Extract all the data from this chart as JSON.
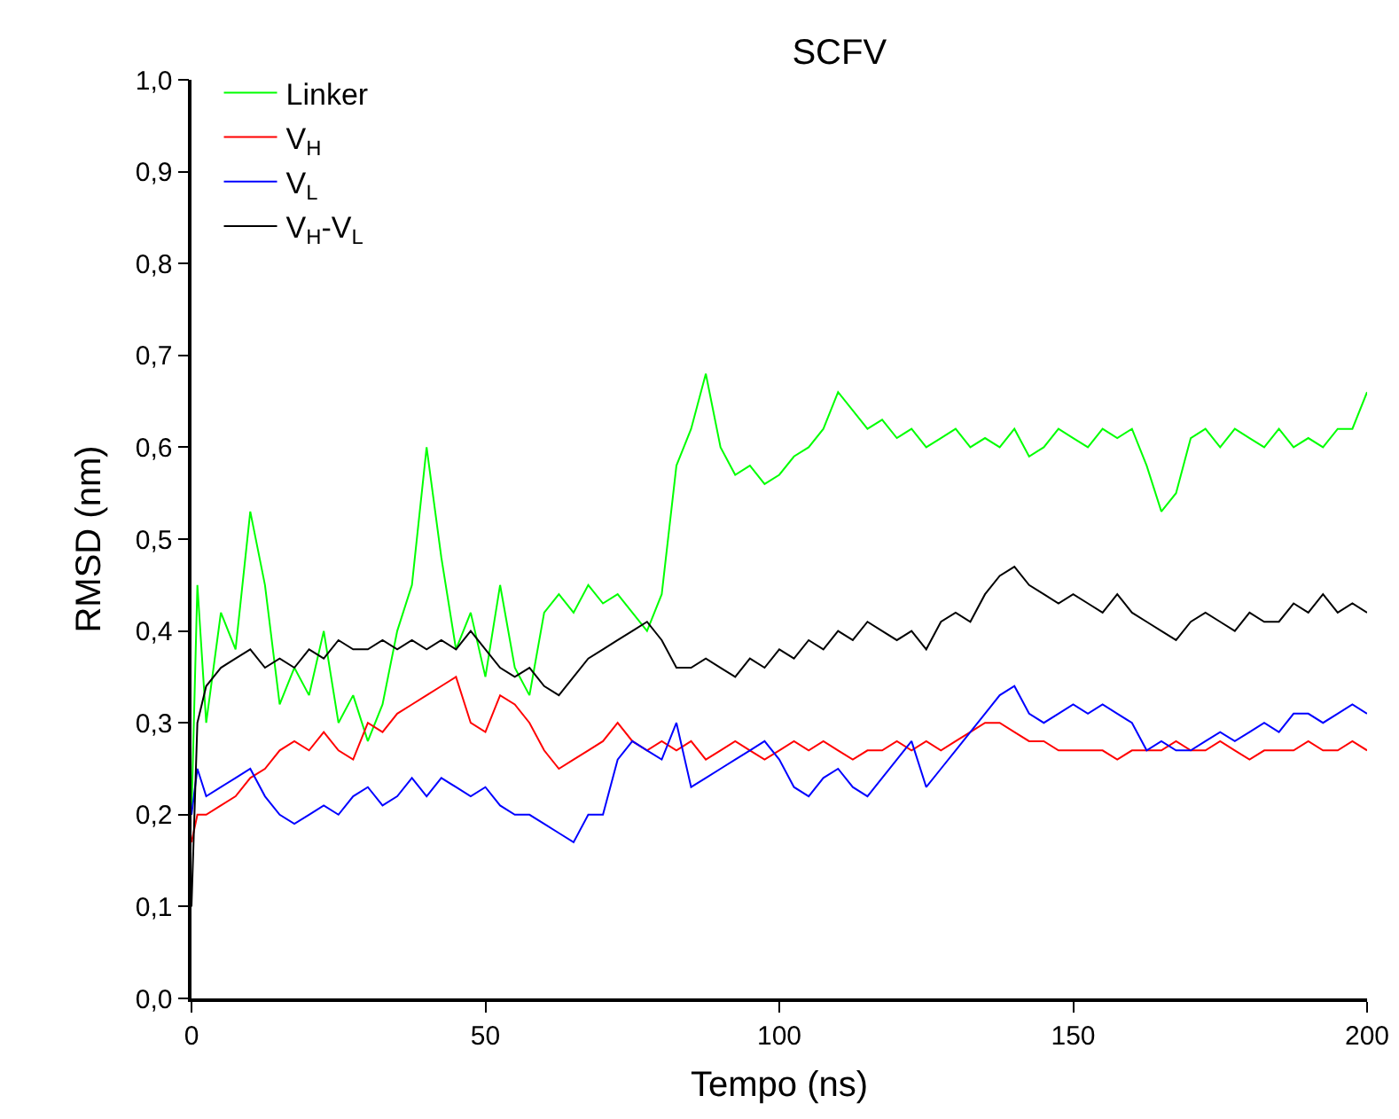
{
  "chart_data": {
    "type": "line",
    "title": "SCFV",
    "xlabel": "Tempo (ns)",
    "ylabel": "RMSD (nm)",
    "x": [
      0,
      1,
      2.5,
      5,
      7.5,
      10,
      12.5,
      15,
      17.5,
      20,
      22.5,
      25,
      27.5,
      30,
      32.5,
      35,
      37.5,
      40,
      42.5,
      45,
      47.5,
      50,
      52.5,
      55,
      57.5,
      60,
      62.5,
      65,
      67.5,
      70,
      72.5,
      75,
      77.5,
      80,
      82.5,
      85,
      87.5,
      90,
      92.5,
      95,
      97.5,
      100,
      102.5,
      105,
      107.5,
      110,
      112.5,
      115,
      117.5,
      120,
      122.5,
      125,
      127.5,
      130,
      132.5,
      135,
      137.5,
      140,
      142.5,
      145,
      147.5,
      150,
      152.5,
      155,
      157.5,
      160,
      162.5,
      165,
      167.5,
      170,
      172.5,
      175,
      177.5,
      180,
      182.5,
      185,
      187.5,
      190,
      192.5,
      195,
      197.5,
      200
    ],
    "series": [
      {
        "name": "Linker",
        "color": "#00ff00",
        "values": [
          0.2,
          0.45,
          0.3,
          0.42,
          0.38,
          0.53,
          0.45,
          0.32,
          0.36,
          0.33,
          0.4,
          0.3,
          0.33,
          0.28,
          0.32,
          0.4,
          0.45,
          0.6,
          0.48,
          0.38,
          0.42,
          0.35,
          0.45,
          0.36,
          0.33,
          0.42,
          0.44,
          0.42,
          0.45,
          0.43,
          0.44,
          0.42,
          0.4,
          0.44,
          0.58,
          0.62,
          0.68,
          0.6,
          0.57,
          0.58,
          0.56,
          0.57,
          0.59,
          0.6,
          0.62,
          0.66,
          0.64,
          0.62,
          0.63,
          0.61,
          0.62,
          0.6,
          0.61,
          0.62,
          0.6,
          0.61,
          0.6,
          0.62,
          0.59,
          0.6,
          0.62,
          0.61,
          0.6,
          0.62,
          0.61,
          0.62,
          0.58,
          0.53,
          0.55,
          0.61,
          0.62,
          0.6,
          0.62,
          0.61,
          0.6,
          0.62,
          0.6,
          0.61,
          0.6,
          0.62,
          0.62,
          0.66
        ]
      },
      {
        "name": "V$_{H}$",
        "color": "#ff0000",
        "values": [
          0.17,
          0.2,
          0.2,
          0.21,
          0.22,
          0.24,
          0.25,
          0.27,
          0.28,
          0.27,
          0.29,
          0.27,
          0.26,
          0.3,
          0.29,
          0.31,
          0.32,
          0.33,
          0.34,
          0.35,
          0.3,
          0.29,
          0.33,
          0.32,
          0.3,
          0.27,
          0.25,
          0.26,
          0.27,
          0.28,
          0.3,
          0.28,
          0.27,
          0.28,
          0.27,
          0.28,
          0.26,
          0.27,
          0.28,
          0.27,
          0.26,
          0.27,
          0.28,
          0.27,
          0.28,
          0.27,
          0.26,
          0.27,
          0.27,
          0.28,
          0.27,
          0.28,
          0.27,
          0.28,
          0.29,
          0.3,
          0.3,
          0.29,
          0.28,
          0.28,
          0.27,
          0.27,
          0.27,
          0.27,
          0.26,
          0.27,
          0.27,
          0.27,
          0.28,
          0.27,
          0.27,
          0.28,
          0.27,
          0.26,
          0.27,
          0.27,
          0.27,
          0.28,
          0.27,
          0.27,
          0.28,
          0.27
        ]
      },
      {
        "name": "V$_{L}$",
        "color": "#0000ff",
        "values": [
          0.2,
          0.25,
          0.22,
          0.23,
          0.24,
          0.25,
          0.22,
          0.2,
          0.19,
          0.2,
          0.21,
          0.2,
          0.22,
          0.23,
          0.21,
          0.22,
          0.24,
          0.22,
          0.24,
          0.23,
          0.22,
          0.23,
          0.21,
          0.2,
          0.2,
          0.19,
          0.18,
          0.17,
          0.2,
          0.2,
          0.26,
          0.28,
          0.27,
          0.26,
          0.3,
          0.23,
          0.24,
          0.25,
          0.26,
          0.27,
          0.28,
          0.26,
          0.23,
          0.22,
          0.24,
          0.25,
          0.23,
          0.22,
          0.24,
          0.26,
          0.28,
          0.23,
          0.25,
          0.27,
          0.29,
          0.31,
          0.33,
          0.34,
          0.31,
          0.3,
          0.31,
          0.32,
          0.31,
          0.32,
          0.31,
          0.3,
          0.27,
          0.28,
          0.27,
          0.27,
          0.28,
          0.29,
          0.28,
          0.29,
          0.3,
          0.29,
          0.31,
          0.31,
          0.3,
          0.31,
          0.32,
          0.31
        ]
      },
      {
        "name": "V$_{H}$-V$_{L}$",
        "color": "#000000",
        "values": [
          0.1,
          0.3,
          0.34,
          0.36,
          0.37,
          0.38,
          0.36,
          0.37,
          0.36,
          0.38,
          0.37,
          0.39,
          0.38,
          0.38,
          0.39,
          0.38,
          0.39,
          0.38,
          0.39,
          0.38,
          0.4,
          0.38,
          0.36,
          0.35,
          0.36,
          0.34,
          0.33,
          0.35,
          0.37,
          0.38,
          0.39,
          0.4,
          0.41,
          0.39,
          0.36,
          0.36,
          0.37,
          0.36,
          0.35,
          0.37,
          0.36,
          0.38,
          0.37,
          0.39,
          0.38,
          0.4,
          0.39,
          0.41,
          0.4,
          0.39,
          0.4,
          0.38,
          0.41,
          0.42,
          0.41,
          0.44,
          0.46,
          0.47,
          0.45,
          0.44,
          0.43,
          0.44,
          0.43,
          0.42,
          0.44,
          0.42,
          0.41,
          0.4,
          0.39,
          0.41,
          0.42,
          0.41,
          0.4,
          0.42,
          0.41,
          0.41,
          0.43,
          0.42,
          0.44,
          0.42,
          0.43,
          0.42
        ]
      }
    ],
    "xlim": [
      0,
      200
    ],
    "xticks": [
      0,
      50,
      100,
      150,
      200
    ],
    "ylim": [
      0,
      1.0
    ],
    "yticks": [
      {
        "value": 0,
        "label": "0,0"
      },
      {
        "value": 0.1,
        "label": "0,1"
      },
      {
        "value": 0.2,
        "label": "0,2"
      },
      {
        "value": 0.3,
        "label": "0,3"
      },
      {
        "value": 0.4,
        "label": "0,4"
      },
      {
        "value": 0.5,
        "label": "0,5"
      },
      {
        "value": 0.6,
        "label": "0,6"
      },
      {
        "value": 0.7,
        "label": "0,7"
      },
      {
        "value": 0.8,
        "label": "0,8"
      },
      {
        "value": 0.9,
        "label": "0,9"
      },
      {
        "value": 1.0,
        "label": "1,0"
      }
    ],
    "grid": false,
    "legend": "top left",
    "line_style": "solid",
    "marker": "none"
  }
}
